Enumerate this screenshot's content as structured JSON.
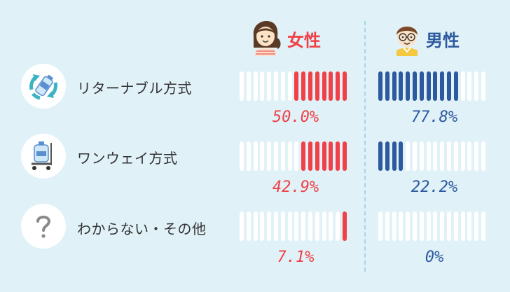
{
  "headers": {
    "female": "女性",
    "male": "男性"
  },
  "colors": {
    "female": "#ef4147",
    "male": "#2d5a9e",
    "empty": "#ffffff",
    "background": "#e0f1f8"
  },
  "categories": [
    {
      "label": "リターナブル方式",
      "icon": "recycle-bottle-icon"
    },
    {
      "label": "ワンウェイ方式",
      "icon": "water-jug-cart-icon"
    },
    {
      "label": "わからない・その他",
      "icon": "question-mark-icon"
    }
  ],
  "values": {
    "female": [
      "50.0%",
      "42.9%",
      "7.1%"
    ],
    "male": [
      "77.8%",
      "22.2%",
      "0%"
    ]
  },
  "chart_data": {
    "type": "bar",
    "categories": [
      "リターナブル方式",
      "ワンウェイ方式",
      "わからない・その他"
    ],
    "series": [
      {
        "name": "女性",
        "values": [
          50.0,
          42.9,
          7.1
        ]
      },
      {
        "name": "男性",
        "values": [
          77.8,
          22.2,
          0
        ]
      }
    ],
    "ylim": [
      0,
      100
    ]
  }
}
